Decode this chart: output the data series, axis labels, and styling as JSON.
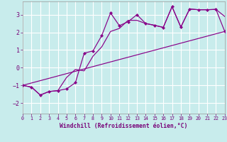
{
  "xlabel": "Windchill (Refroidissement éolien,°C)",
  "bg_color": "#c8ecec",
  "grid_color": "#ffffff",
  "line_color": "#880088",
  "xlim": [
    0,
    23
  ],
  "ylim": [
    -2.6,
    3.75
  ],
  "yticks": [
    -2,
    -1,
    0,
    1,
    2,
    3
  ],
  "xticks": [
    0,
    1,
    2,
    3,
    4,
    5,
    6,
    7,
    8,
    9,
    10,
    11,
    12,
    13,
    14,
    15,
    16,
    17,
    18,
    19,
    20,
    21,
    22,
    23
  ],
  "line1_x": [
    0,
    1,
    2,
    3,
    4,
    5,
    6,
    7,
    8,
    9,
    10,
    11,
    12,
    13,
    14,
    15,
    16,
    17,
    18,
    19,
    20,
    21,
    22,
    23
  ],
  "line1_y": [
    -1.0,
    -1.1,
    -1.55,
    -1.35,
    -1.3,
    -1.2,
    -0.85,
    0.82,
    0.95,
    1.82,
    3.1,
    2.38,
    2.6,
    3.0,
    2.5,
    2.4,
    2.28,
    3.45,
    2.3,
    3.32,
    3.28,
    3.28,
    3.3,
    2.05
  ],
  "line2_x": [
    0,
    1,
    2,
    3,
    4,
    5,
    6,
    7,
    8,
    9,
    10,
    11,
    12,
    13,
    14,
    15,
    16,
    17,
    18,
    19,
    20,
    21,
    22,
    23
  ],
  "line2_y": [
    -1.0,
    -1.1,
    -1.55,
    -1.35,
    -1.3,
    -0.55,
    -0.1,
    -0.18,
    0.65,
    1.18,
    2.05,
    2.22,
    2.68,
    2.68,
    2.5,
    2.4,
    2.28,
    3.45,
    2.3,
    3.32,
    3.28,
    3.28,
    3.3,
    2.9
  ],
  "line3_x": [
    0,
    23
  ],
  "line3_y": [
    -1.0,
    2.05
  ]
}
